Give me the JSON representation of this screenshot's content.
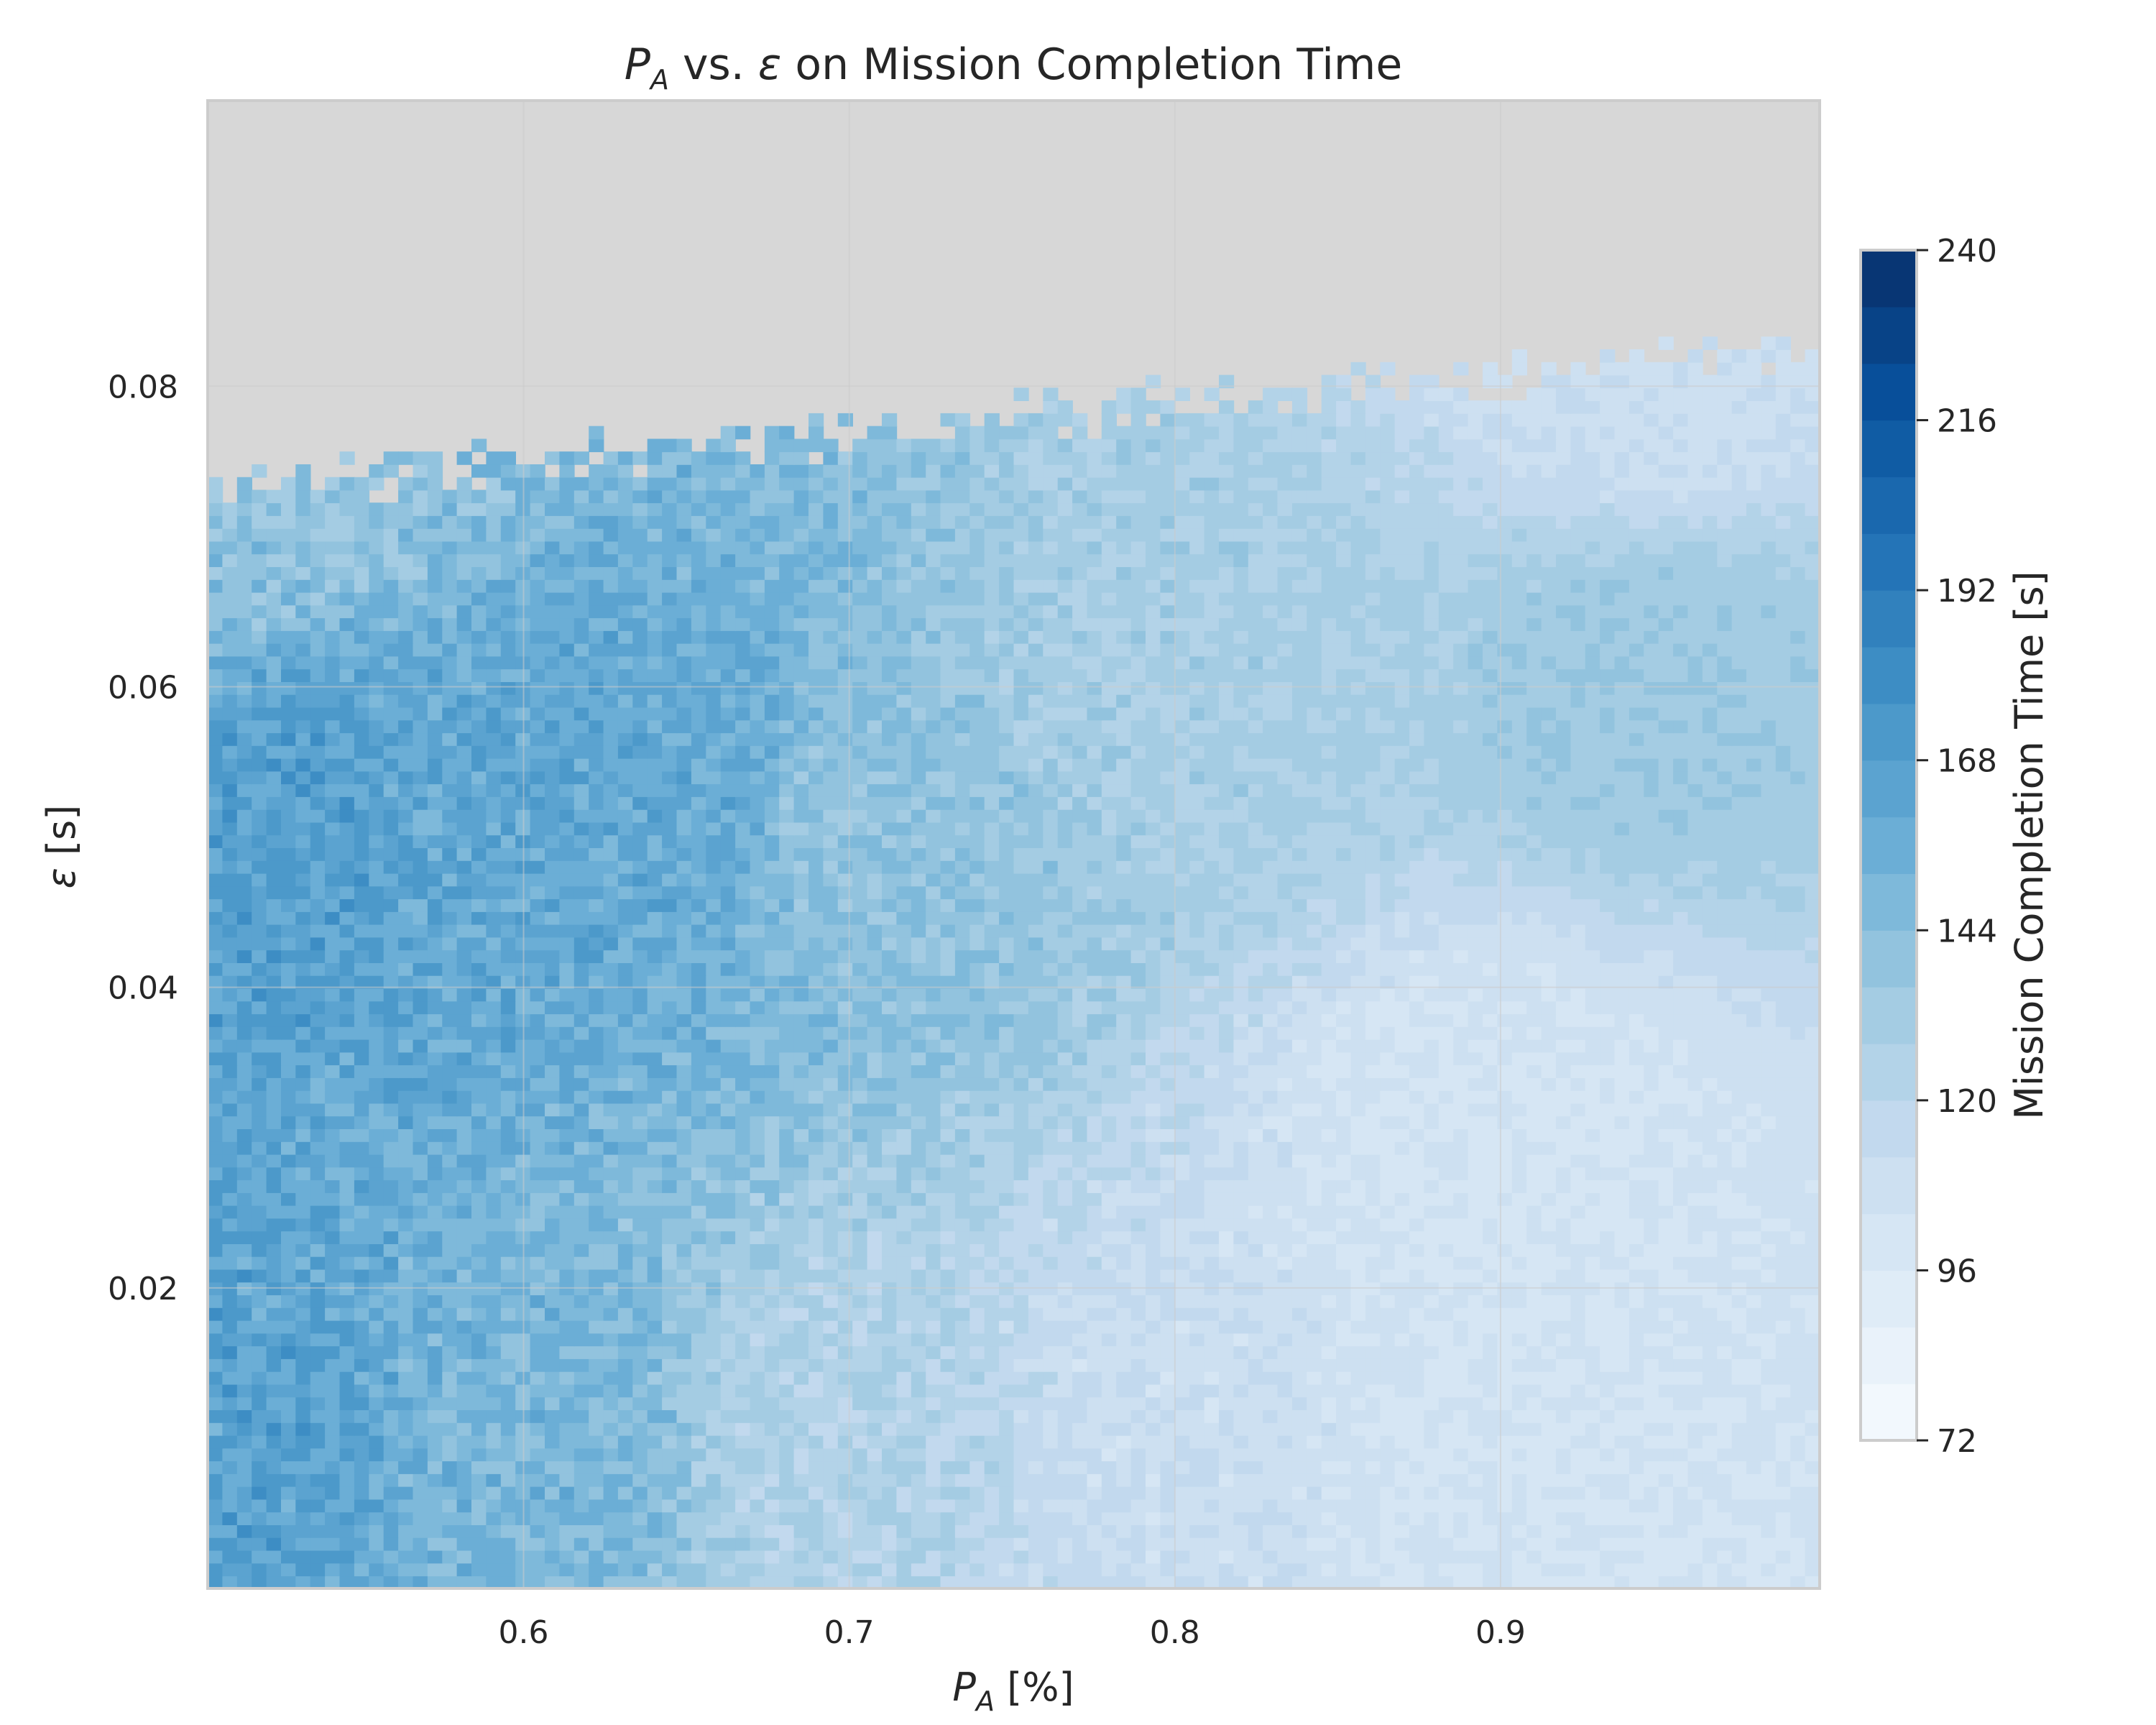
{
  "chart_data": {
    "type": "heatmap",
    "title": {
      "pre": "P",
      "pre_sub": "A",
      "mid": " vs. ",
      "sym": "ε",
      "post": " on Mission Completion Time"
    },
    "xlabel": {
      "main": "P",
      "sub": "A",
      "rest": " [%]"
    },
    "ylabel": {
      "sym": "ε",
      "rest": " [s]"
    },
    "x_range": [
      0.503,
      0.998
    ],
    "y_range": [
      0.0,
      0.099
    ],
    "x_ticks": [
      0.6,
      0.7,
      0.8,
      0.9
    ],
    "x_tick_labels": [
      "0.6",
      "0.7",
      "0.8",
      "0.9"
    ],
    "y_ticks": [
      0.02,
      0.04,
      0.06,
      0.08
    ],
    "y_tick_labels": [
      "0.02",
      "0.04",
      "0.06",
      "0.08"
    ],
    "grid": true,
    "no_data_color": "#d7d7d7",
    "colormap": "Blues",
    "colorbar": {
      "label": "Mission Completion Time [s]",
      "range": [
        72,
        240
      ],
      "levels": 21,
      "ticks": [
        72,
        96,
        120,
        144,
        168,
        192,
        216,
        240
      ],
      "tick_labels": [
        "72",
        "96",
        "120",
        "144",
        "168",
        "192",
        "216",
        "240"
      ]
    },
    "data_ceiling_eps": 0.085,
    "surface_samples": [
      {
        "p_a": 0.52,
        "eps": 0.01,
        "time": 165
      },
      {
        "p_a": 0.52,
        "eps": 0.05,
        "time": 168
      },
      {
        "p_a": 0.52,
        "eps": 0.075,
        "time": 140
      },
      {
        "p_a": 0.6,
        "eps": 0.01,
        "time": 150
      },
      {
        "p_a": 0.6,
        "eps": 0.05,
        "time": 160
      },
      {
        "p_a": 0.65,
        "eps": 0.052,
        "time": 160
      },
      {
        "p_a": 0.7,
        "eps": 0.01,
        "time": 125
      },
      {
        "p_a": 0.7,
        "eps": 0.05,
        "time": 140
      },
      {
        "p_a": 0.8,
        "eps": 0.01,
        "time": 110
      },
      {
        "p_a": 0.8,
        "eps": 0.06,
        "time": 130
      },
      {
        "p_a": 0.9,
        "eps": 0.01,
        "time": 103
      },
      {
        "p_a": 0.9,
        "eps": 0.03,
        "time": 103
      },
      {
        "p_a": 0.95,
        "eps": 0.061,
        "time": 135
      },
      {
        "p_a": 0.95,
        "eps": 0.08,
        "time": 110
      }
    ]
  }
}
